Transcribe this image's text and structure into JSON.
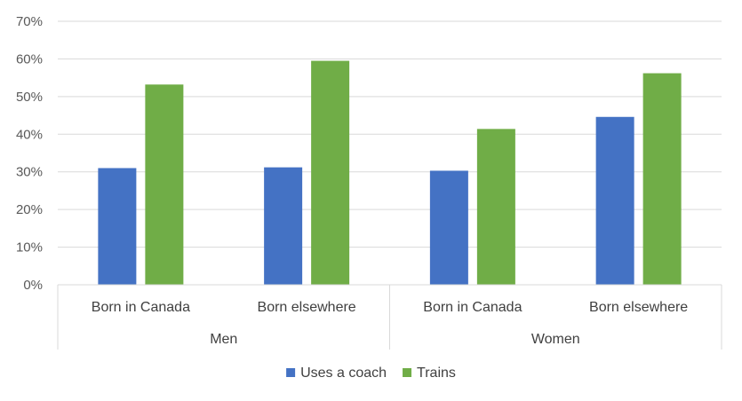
{
  "chart_data": {
    "type": "bar",
    "title": "",
    "xlabel": "",
    "ylabel": "",
    "ylim": [
      0,
      70
    ],
    "yticks": [
      0,
      10,
      20,
      30,
      40,
      50,
      60,
      70
    ],
    "ytick_suffix": "%",
    "groups": [
      {
        "label": "Men",
        "categories": [
          "Born in Canada",
          "Born elsewhere"
        ]
      },
      {
        "label": "Women",
        "categories": [
          "Born in Canada",
          "Born elsewhere"
        ]
      }
    ],
    "series": [
      {
        "name": "Uses a coach",
        "color": "#4472C4",
        "values": [
          31,
          31.2,
          30.3,
          44.6
        ]
      },
      {
        "name": "Trains",
        "color": "#70AD47",
        "values": [
          53.2,
          59.5,
          41.4,
          56.2
        ]
      }
    ],
    "grid": true,
    "legend_position": "bottom"
  }
}
